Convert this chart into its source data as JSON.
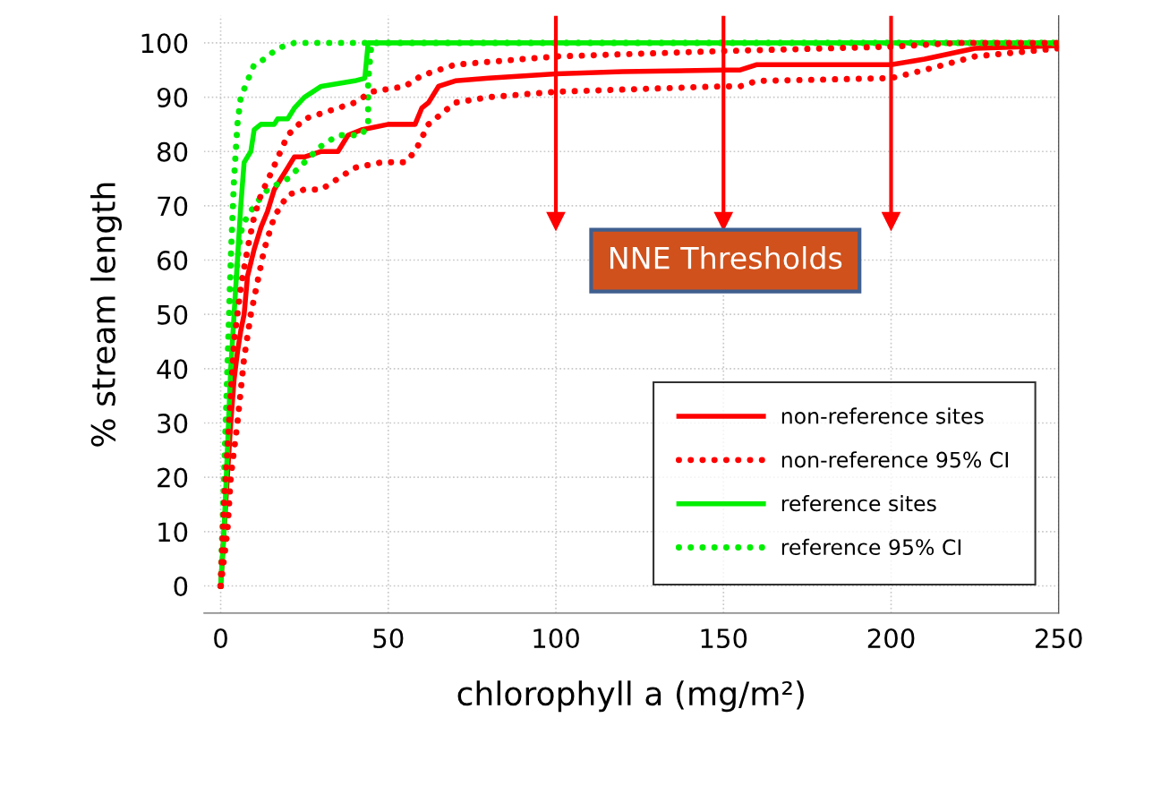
{
  "chart_data": {
    "type": "line",
    "xlabel": "chlorophyll a (mg/m²)",
    "ylabel": "% stream length",
    "xlim": [
      -5,
      250
    ],
    "ylim": [
      -5,
      105
    ],
    "xticks": [
      0,
      50,
      100,
      150,
      200,
      250
    ],
    "yticks": [
      0,
      10,
      20,
      30,
      40,
      50,
      60,
      70,
      80,
      90,
      100
    ],
    "grid": true,
    "legend": "lower right",
    "series": [
      {
        "name": "non-reference sites",
        "color": "#ff0000",
        "line_style": "solid",
        "x": [
          0,
          1,
          2,
          3,
          4,
          5,
          6,
          7,
          8,
          10,
          12,
          14,
          16,
          18,
          20,
          22,
          25,
          30,
          35,
          38,
          42,
          50,
          58,
          60,
          62,
          65,
          70,
          80,
          100,
          120,
          150,
          155,
          160,
          200,
          210,
          225,
          250
        ],
        "values": [
          0,
          10,
          20,
          30,
          38,
          43,
          47,
          50,
          57,
          62,
          66,
          69,
          73,
          75,
          77,
          79,
          79,
          80,
          80,
          83,
          84,
          85,
          85,
          88,
          89,
          92,
          93,
          93.5,
          94.3,
          94.7,
          95,
          95,
          96,
          96,
          97,
          99,
          99.5
        ]
      },
      {
        "name": "non-reference 95% CI",
        "color": "#ff0000",
        "line_style": "dotted",
        "x": [
          0,
          1,
          2,
          3,
          4,
          5,
          6,
          8,
          10,
          12,
          15,
          20,
          25,
          30,
          40,
          45,
          55,
          60,
          70,
          100,
          150,
          200,
          220,
          250
        ],
        "values": [
          0,
          15,
          25,
          35,
          45,
          50,
          55,
          62,
          68,
          72,
          76,
          83,
          86,
          87,
          89,
          91,
          92,
          94,
          96,
          97.5,
          98.5,
          99.3,
          100,
          100
        ]
      },
      {
        "color": "#ff0000",
        "line_style": "dotted",
        "x": [
          0,
          2,
          3,
          4,
          5,
          6,
          7,
          9,
          11,
          13,
          16,
          20,
          25,
          30,
          35,
          40,
          48,
          55,
          58,
          62,
          66,
          70,
          80,
          100,
          150,
          155,
          160,
          200,
          210,
          225,
          250
        ],
        "values": [
          0,
          10,
          20,
          25,
          30,
          36,
          42,
          50,
          56,
          62,
          68,
          72,
          73,
          73,
          75,
          77,
          78,
          78,
          80,
          85,
          87,
          89,
          90,
          91,
          92,
          92,
          93,
          93.5,
          95,
          97.5,
          99
        ]
      },
      {
        "name": "reference sites",
        "color": "#00ee00",
        "line_style": "solid",
        "x": [
          0,
          1,
          2,
          3,
          4,
          5,
          6,
          7,
          8,
          9,
          10,
          12,
          16,
          17,
          20,
          22,
          25,
          30,
          40,
          43,
          44,
          250
        ],
        "values": [
          0,
          10,
          25,
          40,
          50,
          60,
          70,
          78,
          79,
          80,
          84,
          85,
          85,
          86,
          86,
          88,
          90,
          92,
          93,
          93.5,
          100,
          100
        ]
      },
      {
        "name": "reference 95% CI",
        "color": "#00ee00",
        "line_style": "dotted",
        "x": [
          0,
          1,
          2,
          3,
          4,
          5,
          6,
          8,
          10,
          13,
          17,
          22,
          250
        ],
        "values": [
          0,
          20,
          40,
          60,
          75,
          85,
          90,
          93,
          96,
          97,
          99,
          100,
          100
        ]
      },
      {
        "color": "#00ee00",
        "line_style": "dotted",
        "x": [
          0,
          1,
          2,
          3,
          4,
          5,
          6,
          7,
          10,
          14,
          20,
          25,
          30,
          35,
          42,
          44,
          44,
          45,
          50,
          250
        ],
        "values": [
          0,
          10,
          25,
          40,
          50,
          60,
          65,
          67,
          70,
          73,
          75,
          78,
          81,
          83,
          83,
          85,
          93,
          100,
          100,
          100
        ]
      }
    ],
    "ref_lines": [
      {
        "axis": "x",
        "value": 100,
        "color": "#ff0000"
      },
      {
        "axis": "x",
        "value": 150,
        "color": "#ff0000"
      },
      {
        "axis": "x",
        "value": 200,
        "color": "#ff0000"
      }
    ],
    "annotations": [
      "NNE Thresholds"
    ]
  }
}
